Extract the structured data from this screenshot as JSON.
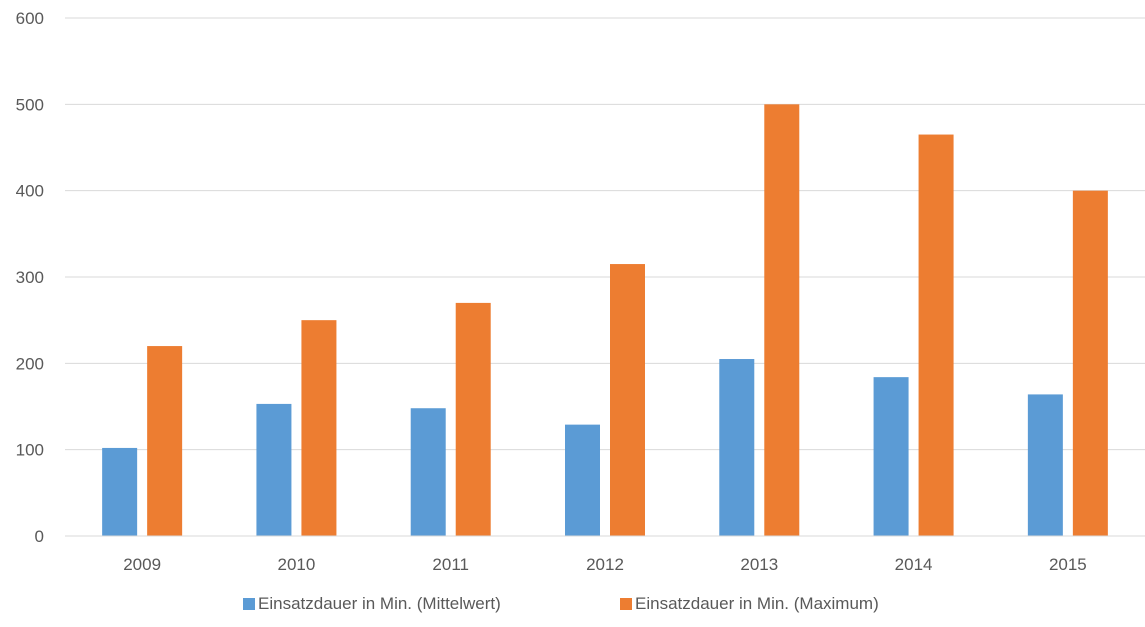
{
  "chart_data": {
    "type": "bar",
    "categories": [
      "2009",
      "2010",
      "2011",
      "2012",
      "2013",
      "2014",
      "2015"
    ],
    "series": [
      {
        "name": "Einsatzdauer in Min. (Mittelwert)",
        "color": "#5b9bd5",
        "values": [
          102,
          153,
          148,
          129,
          205,
          184,
          164
        ]
      },
      {
        "name": "Einsatzdauer in Min. (Maximum)",
        "color": "#ed7d31",
        "values": [
          220,
          250,
          270,
          315,
          500,
          465,
          400
        ]
      }
    ],
    "ylim": [
      0,
      600
    ],
    "yticks": [
      0,
      100,
      200,
      300,
      400,
      500,
      600
    ],
    "grid": true,
    "legend": "bottom",
    "title": "",
    "xlabel": "",
    "ylabel": ""
  }
}
